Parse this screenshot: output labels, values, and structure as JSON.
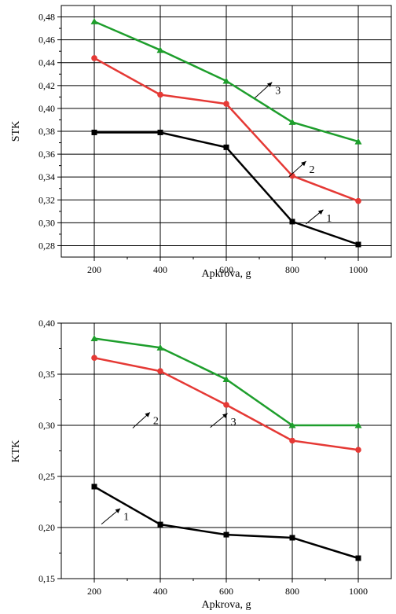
{
  "colors": {
    "series_1": "#000000",
    "series_2": "#e53935",
    "series_3": "#1e9e2c",
    "axis": "#000000",
    "grid": "#000000"
  },
  "chart_data": [
    {
      "type": "line",
      "xlabel": "Apkrova, g",
      "ylabel": "STK",
      "x": [
        200,
        400,
        600,
        800,
        1000
      ],
      "xticks": [
        200,
        400,
        600,
        800,
        1000
      ],
      "xtick_labels": [
        "200",
        "400",
        "600",
        "800",
        "1000"
      ],
      "xlim": [
        100,
        1100
      ],
      "ylim": [
        0.27,
        0.49
      ],
      "yticks": [
        0.28,
        0.3,
        0.32,
        0.34,
        0.36,
        0.38,
        0.4,
        0.42,
        0.44,
        0.46,
        0.48
      ],
      "ytick_labels": [
        "0,28",
        "0,30",
        "0,32",
        "0,34",
        "0,36",
        "0,38",
        "0,40",
        "0,42",
        "0,44",
        "0,46",
        "0,48"
      ],
      "grid": true,
      "series": [
        {
          "values": [
            0.379,
            0.379,
            0.366,
            0.301,
            0.281
          ],
          "marker": "square",
          "color": "#000000"
        },
        {
          "values": [
            0.444,
            0.412,
            0.404,
            0.341,
            0.319
          ],
          "marker": "circle",
          "color": "#e53935"
        },
        {
          "values": [
            0.476,
            0.451,
            0.424,
            0.388,
            0.371
          ],
          "marker": "triangle",
          "color": "#1e9e2c"
        }
      ],
      "annotations": [
        {
          "text": "1",
          "x": 870,
          "y": 0.3045
        },
        {
          "text": "2",
          "x": 818,
          "y": 0.347
        },
        {
          "text": "3",
          "x": 715,
          "y": 0.416
        }
      ]
    },
    {
      "type": "line",
      "xlabel": "Apkrova, g",
      "ylabel": "KTK",
      "x": [
        200,
        400,
        600,
        800,
        1000
      ],
      "xticks": [
        200,
        400,
        600,
        800,
        1000
      ],
      "xtick_labels": [
        "200",
        "400",
        "600",
        "800",
        "1000"
      ],
      "xlim": [
        100,
        1100
      ],
      "ylim": [
        0.15,
        0.4
      ],
      "yticks": [
        0.15,
        0.2,
        0.25,
        0.3,
        0.35,
        0.4
      ],
      "ytick_labels": [
        "0,15",
        "0,20",
        "0,25",
        "0,30",
        "0,35",
        "0,40"
      ],
      "grid": true,
      "series": [
        {
          "values": [
            0.24,
            0.203,
            0.193,
            0.19,
            0.17
          ],
          "marker": "square",
          "color": "#000000"
        },
        {
          "values": [
            0.366,
            0.353,
            0.32,
            0.285,
            0.276
          ],
          "marker": "circle",
          "color": "#e53935"
        },
        {
          "values": [
            0.385,
            0.376,
            0.345,
            0.3,
            0.3
          ],
          "marker": "triangle",
          "color": "#1e9e2c"
        }
      ],
      "annotations": [
        {
          "text": "1",
          "x": 255,
          "y": 0.211
        },
        {
          "text": "2",
          "x": 345,
          "y": 0.305
        },
        {
          "text": "3",
          "x": 580,
          "y": 0.304
        }
      ]
    }
  ]
}
